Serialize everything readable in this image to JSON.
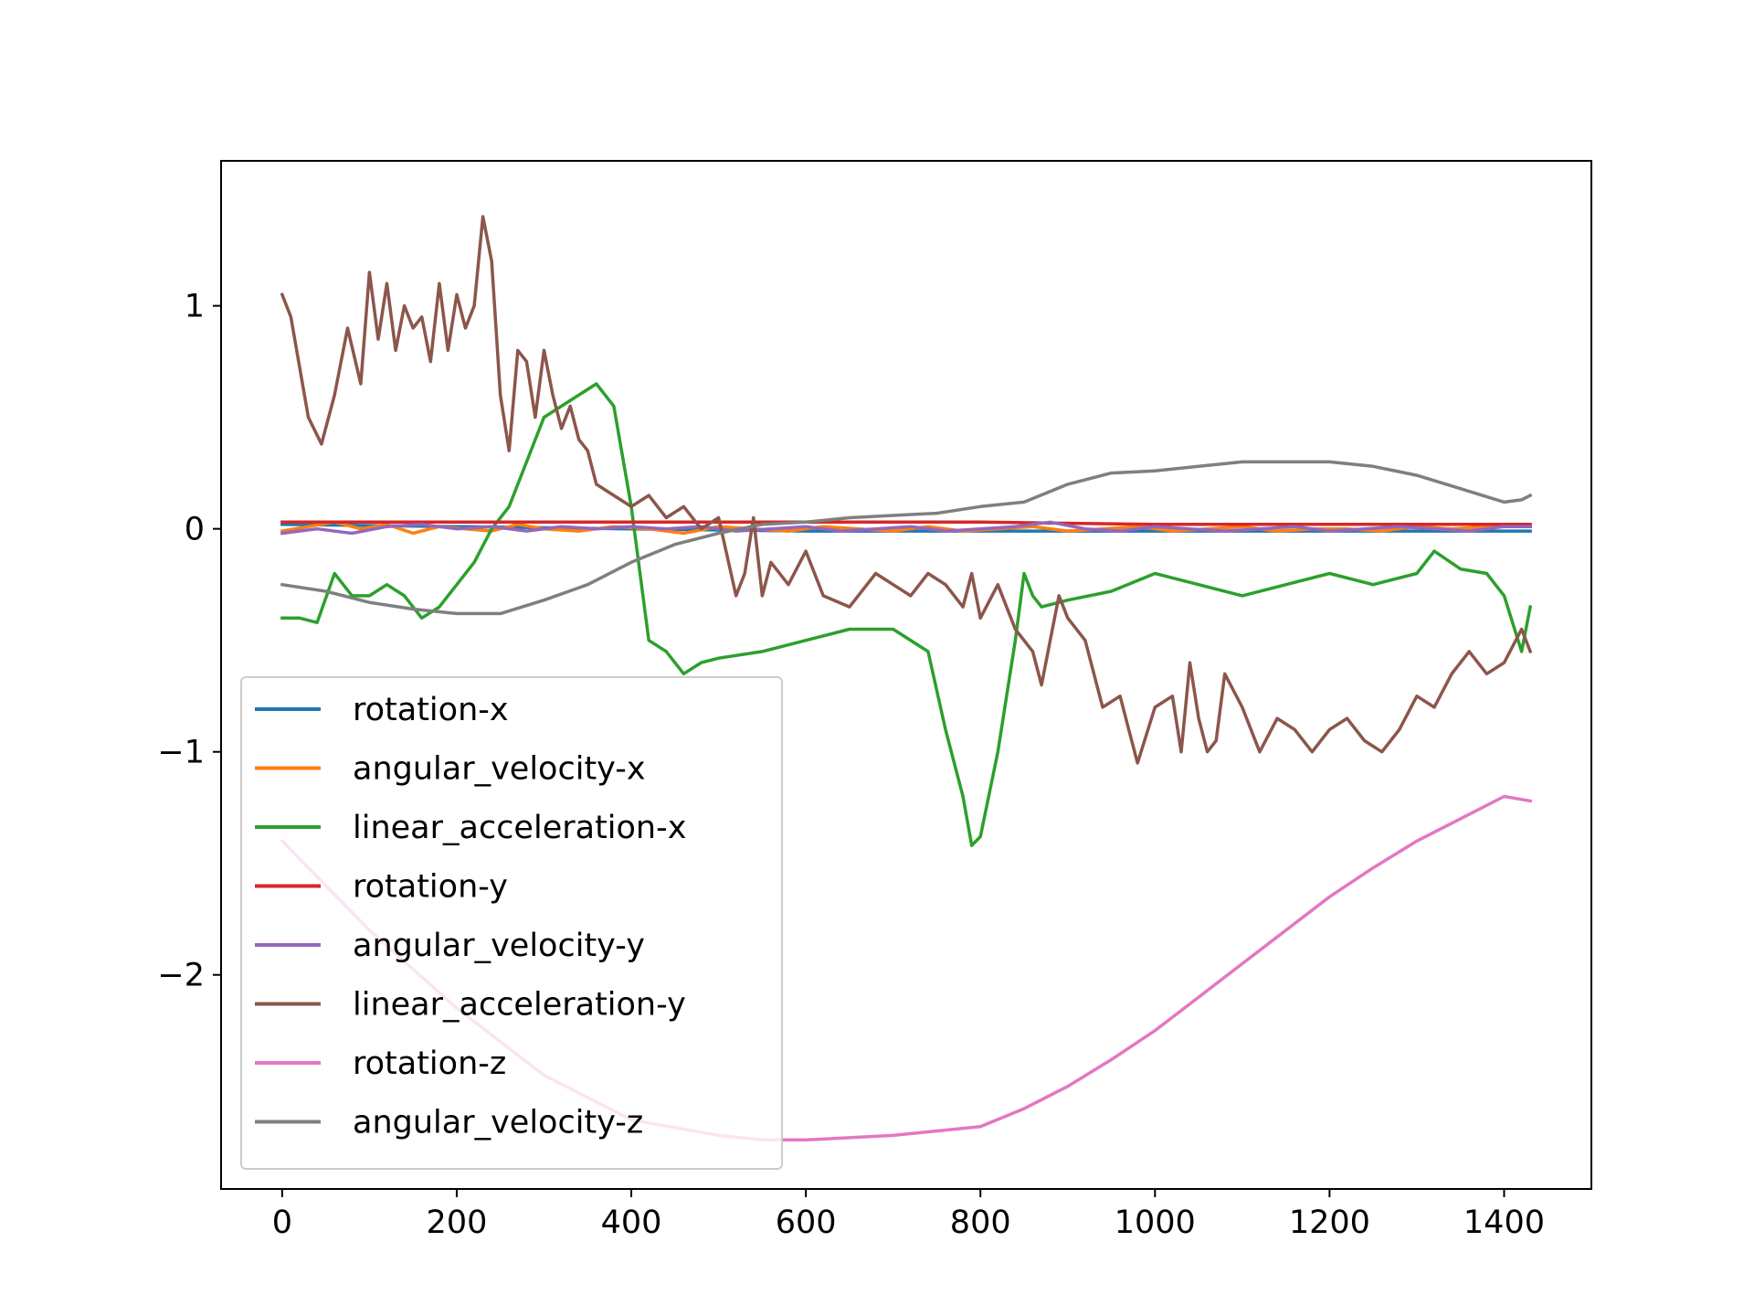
{
  "chart_data": {
    "type": "line",
    "title": "",
    "xlabel": "",
    "ylabel": "",
    "xlim": [
      -70,
      1500
    ],
    "ylim": [
      -2.96,
      1.65
    ],
    "xticks": [
      0,
      200,
      400,
      600,
      800,
      1000,
      1200,
      1400
    ],
    "xtick_labels": [
      "0",
      "200",
      "400",
      "600",
      "800",
      "1000",
      "1200",
      "1400"
    ],
    "yticks": [
      1,
      0,
      -1,
      -2
    ],
    "ytick_labels": [
      "1",
      "0",
      "−1",
      "−2"
    ],
    "grid": false,
    "legend_position": "lower-left",
    "series": [
      {
        "name": "rotation-x",
        "color": "#1f77b4",
        "x": [
          0,
          200,
          400,
          600,
          800,
          1000,
          1200,
          1430
        ],
        "y": [
          0.02,
          0.01,
          0.0,
          -0.01,
          -0.01,
          -0.01,
          -0.01,
          -0.01
        ]
      },
      {
        "name": "angular_velocity-x",
        "color": "#ff7f0e",
        "x": [
          0,
          30,
          60,
          90,
          120,
          150,
          180,
          210,
          240,
          270,
          300,
          340,
          380,
          420,
          460,
          500,
          540,
          580,
          620,
          660,
          700,
          740,
          780,
          820,
          860,
          900,
          940,
          980,
          1020,
          1060,
          1100,
          1140,
          1180,
          1220,
          1260,
          1300,
          1340,
          1380,
          1430
        ],
        "y": [
          -0.01,
          0.01,
          0.03,
          0.0,
          0.02,
          -0.02,
          0.01,
          0.0,
          -0.01,
          0.02,
          0.0,
          -0.01,
          0.01,
          0.0,
          -0.02,
          0.01,
          0.0,
          -0.01,
          0.01,
          0.0,
          -0.01,
          0.01,
          -0.01,
          0.0,
          0.01,
          -0.01,
          0.0,
          0.01,
          -0.01,
          0.0,
          0.01,
          -0.01,
          0.0,
          0.0,
          -0.01,
          0.01,
          0.0,
          0.01,
          0.01
        ]
      },
      {
        "name": "linear_acceleration-x",
        "color": "#2ca02c",
        "x": [
          0,
          20,
          40,
          60,
          80,
          100,
          120,
          140,
          160,
          180,
          200,
          220,
          240,
          260,
          280,
          300,
          320,
          340,
          360,
          380,
          400,
          410,
          420,
          440,
          460,
          480,
          500,
          550,
          600,
          650,
          700,
          740,
          760,
          780,
          790,
          800,
          820,
          840,
          850,
          860,
          870,
          900,
          950,
          1000,
          1050,
          1100,
          1150,
          1200,
          1250,
          1300,
          1320,
          1350,
          1380,
          1400,
          1420,
          1430
        ],
        "y": [
          -0.4,
          -0.4,
          -0.42,
          -0.2,
          -0.3,
          -0.3,
          -0.25,
          -0.3,
          -0.4,
          -0.35,
          -0.25,
          -0.15,
          0.0,
          0.1,
          0.3,
          0.5,
          0.55,
          0.6,
          0.65,
          0.55,
          0.1,
          -0.2,
          -0.5,
          -0.55,
          -0.65,
          -0.6,
          -0.58,
          -0.55,
          -0.5,
          -0.45,
          -0.45,
          -0.55,
          -0.9,
          -1.2,
          -1.42,
          -1.38,
          -1.0,
          -0.5,
          -0.2,
          -0.3,
          -0.35,
          -0.32,
          -0.28,
          -0.2,
          -0.25,
          -0.3,
          -0.25,
          -0.2,
          -0.25,
          -0.2,
          -0.1,
          -0.18,
          -0.2,
          -0.3,
          -0.55,
          -0.35
        ]
      },
      {
        "name": "rotation-y",
        "color": "#d62728",
        "x": [
          0,
          200,
          400,
          600,
          800,
          1000,
          1200,
          1430
        ],
        "y": [
          0.03,
          0.03,
          0.03,
          0.03,
          0.03,
          0.02,
          0.02,
          0.02
        ]
      },
      {
        "name": "angular_velocity-y",
        "color": "#9467bd",
        "x": [
          0,
          40,
          80,
          120,
          160,
          200,
          240,
          280,
          320,
          360,
          400,
          440,
          480,
          520,
          560,
          600,
          640,
          680,
          720,
          760,
          800,
          840,
          880,
          920,
          960,
          1000,
          1040,
          1080,
          1120,
          1160,
          1200,
          1240,
          1280,
          1320,
          1360,
          1400,
          1430
        ],
        "y": [
          -0.02,
          0.0,
          -0.02,
          0.01,
          0.02,
          0.0,
          0.01,
          -0.01,
          0.01,
          0.0,
          0.01,
          0.0,
          0.01,
          -0.01,
          0.0,
          0.01,
          -0.01,
          0.0,
          0.01,
          -0.01,
          0.0,
          0.01,
          0.03,
          0.0,
          -0.01,
          0.01,
          0.0,
          -0.01,
          0.0,
          0.01,
          -0.01,
          0.0,
          0.01,
          0.0,
          -0.01,
          0.01,
          0.01
        ]
      },
      {
        "name": "linear_acceleration-y",
        "color": "#8c564b",
        "x": [
          0,
          10,
          30,
          45,
          60,
          75,
          90,
          100,
          110,
          120,
          130,
          140,
          150,
          160,
          170,
          180,
          190,
          200,
          210,
          220,
          230,
          240,
          250,
          260,
          270,
          280,
          290,
          300,
          310,
          320,
          330,
          340,
          350,
          360,
          380,
          400,
          420,
          440,
          460,
          480,
          500,
          520,
          530,
          540,
          550,
          560,
          580,
          600,
          620,
          650,
          680,
          700,
          720,
          740,
          760,
          780,
          790,
          800,
          820,
          840,
          860,
          870,
          880,
          890,
          900,
          920,
          940,
          960,
          970,
          980,
          1000,
          1020,
          1030,
          1040,
          1050,
          1060,
          1070,
          1080,
          1100,
          1120,
          1140,
          1160,
          1180,
          1200,
          1220,
          1240,
          1260,
          1280,
          1300,
          1320,
          1340,
          1360,
          1380,
          1400,
          1420,
          1430
        ],
        "y": [
          1.05,
          0.95,
          0.5,
          0.38,
          0.6,
          0.9,
          0.65,
          1.15,
          0.85,
          1.1,
          0.8,
          1.0,
          0.9,
          0.95,
          0.75,
          1.1,
          0.8,
          1.05,
          0.9,
          1.0,
          1.4,
          1.2,
          0.6,
          0.35,
          0.8,
          0.75,
          0.5,
          0.8,
          0.6,
          0.45,
          0.55,
          0.4,
          0.35,
          0.2,
          0.15,
          0.1,
          0.15,
          0.05,
          0.1,
          0.0,
          0.05,
          -0.3,
          -0.2,
          0.05,
          -0.3,
          -0.15,
          -0.25,
          -0.1,
          -0.3,
          -0.35,
          -0.2,
          -0.25,
          -0.3,
          -0.2,
          -0.25,
          -0.35,
          -0.2,
          -0.4,
          -0.25,
          -0.45,
          -0.55,
          -0.7,
          -0.5,
          -0.3,
          -0.4,
          -0.5,
          -0.8,
          -0.75,
          -0.9,
          -1.05,
          -0.8,
          -0.75,
          -1.0,
          -0.6,
          -0.85,
          -1.0,
          -0.95,
          -0.65,
          -0.8,
          -1.0,
          -0.85,
          -0.9,
          -1.0,
          -0.9,
          -0.85,
          -0.95,
          -1.0,
          -0.9,
          -0.75,
          -0.8,
          -0.65,
          -0.55,
          -0.65,
          -0.6,
          -0.45,
          -0.55
        ]
      },
      {
        "name": "rotation-z",
        "color": "#e377c2",
        "x": [
          0,
          100,
          200,
          300,
          400,
          500,
          550,
          600,
          700,
          800,
          850,
          900,
          950,
          1000,
          1050,
          1100,
          1150,
          1200,
          1250,
          1300,
          1350,
          1400,
          1430
        ],
        "y": [
          -1.4,
          -1.8,
          -2.15,
          -2.45,
          -2.65,
          -2.72,
          -2.74,
          -2.74,
          -2.72,
          -2.68,
          -2.6,
          -2.5,
          -2.38,
          -2.25,
          -2.1,
          -1.95,
          -1.8,
          -1.65,
          -1.52,
          -1.4,
          -1.3,
          -1.2,
          -1.22
        ]
      },
      {
        "name": "angular_velocity-z",
        "color": "#7f7f7f",
        "x": [
          0,
          50,
          100,
          150,
          200,
          250,
          300,
          350,
          400,
          450,
          500,
          550,
          600,
          650,
          700,
          750,
          800,
          850,
          900,
          950,
          1000,
          1050,
          1100,
          1150,
          1200,
          1250,
          1300,
          1350,
          1400,
          1420,
          1430
        ],
        "y": [
          -0.25,
          -0.28,
          -0.33,
          -0.36,
          -0.38,
          -0.38,
          -0.32,
          -0.25,
          -0.15,
          -0.07,
          -0.02,
          0.02,
          0.03,
          0.05,
          0.06,
          0.07,
          0.1,
          0.12,
          0.2,
          0.25,
          0.26,
          0.28,
          0.3,
          0.3,
          0.3,
          0.28,
          0.24,
          0.18,
          0.12,
          0.13,
          0.15
        ]
      }
    ]
  }
}
